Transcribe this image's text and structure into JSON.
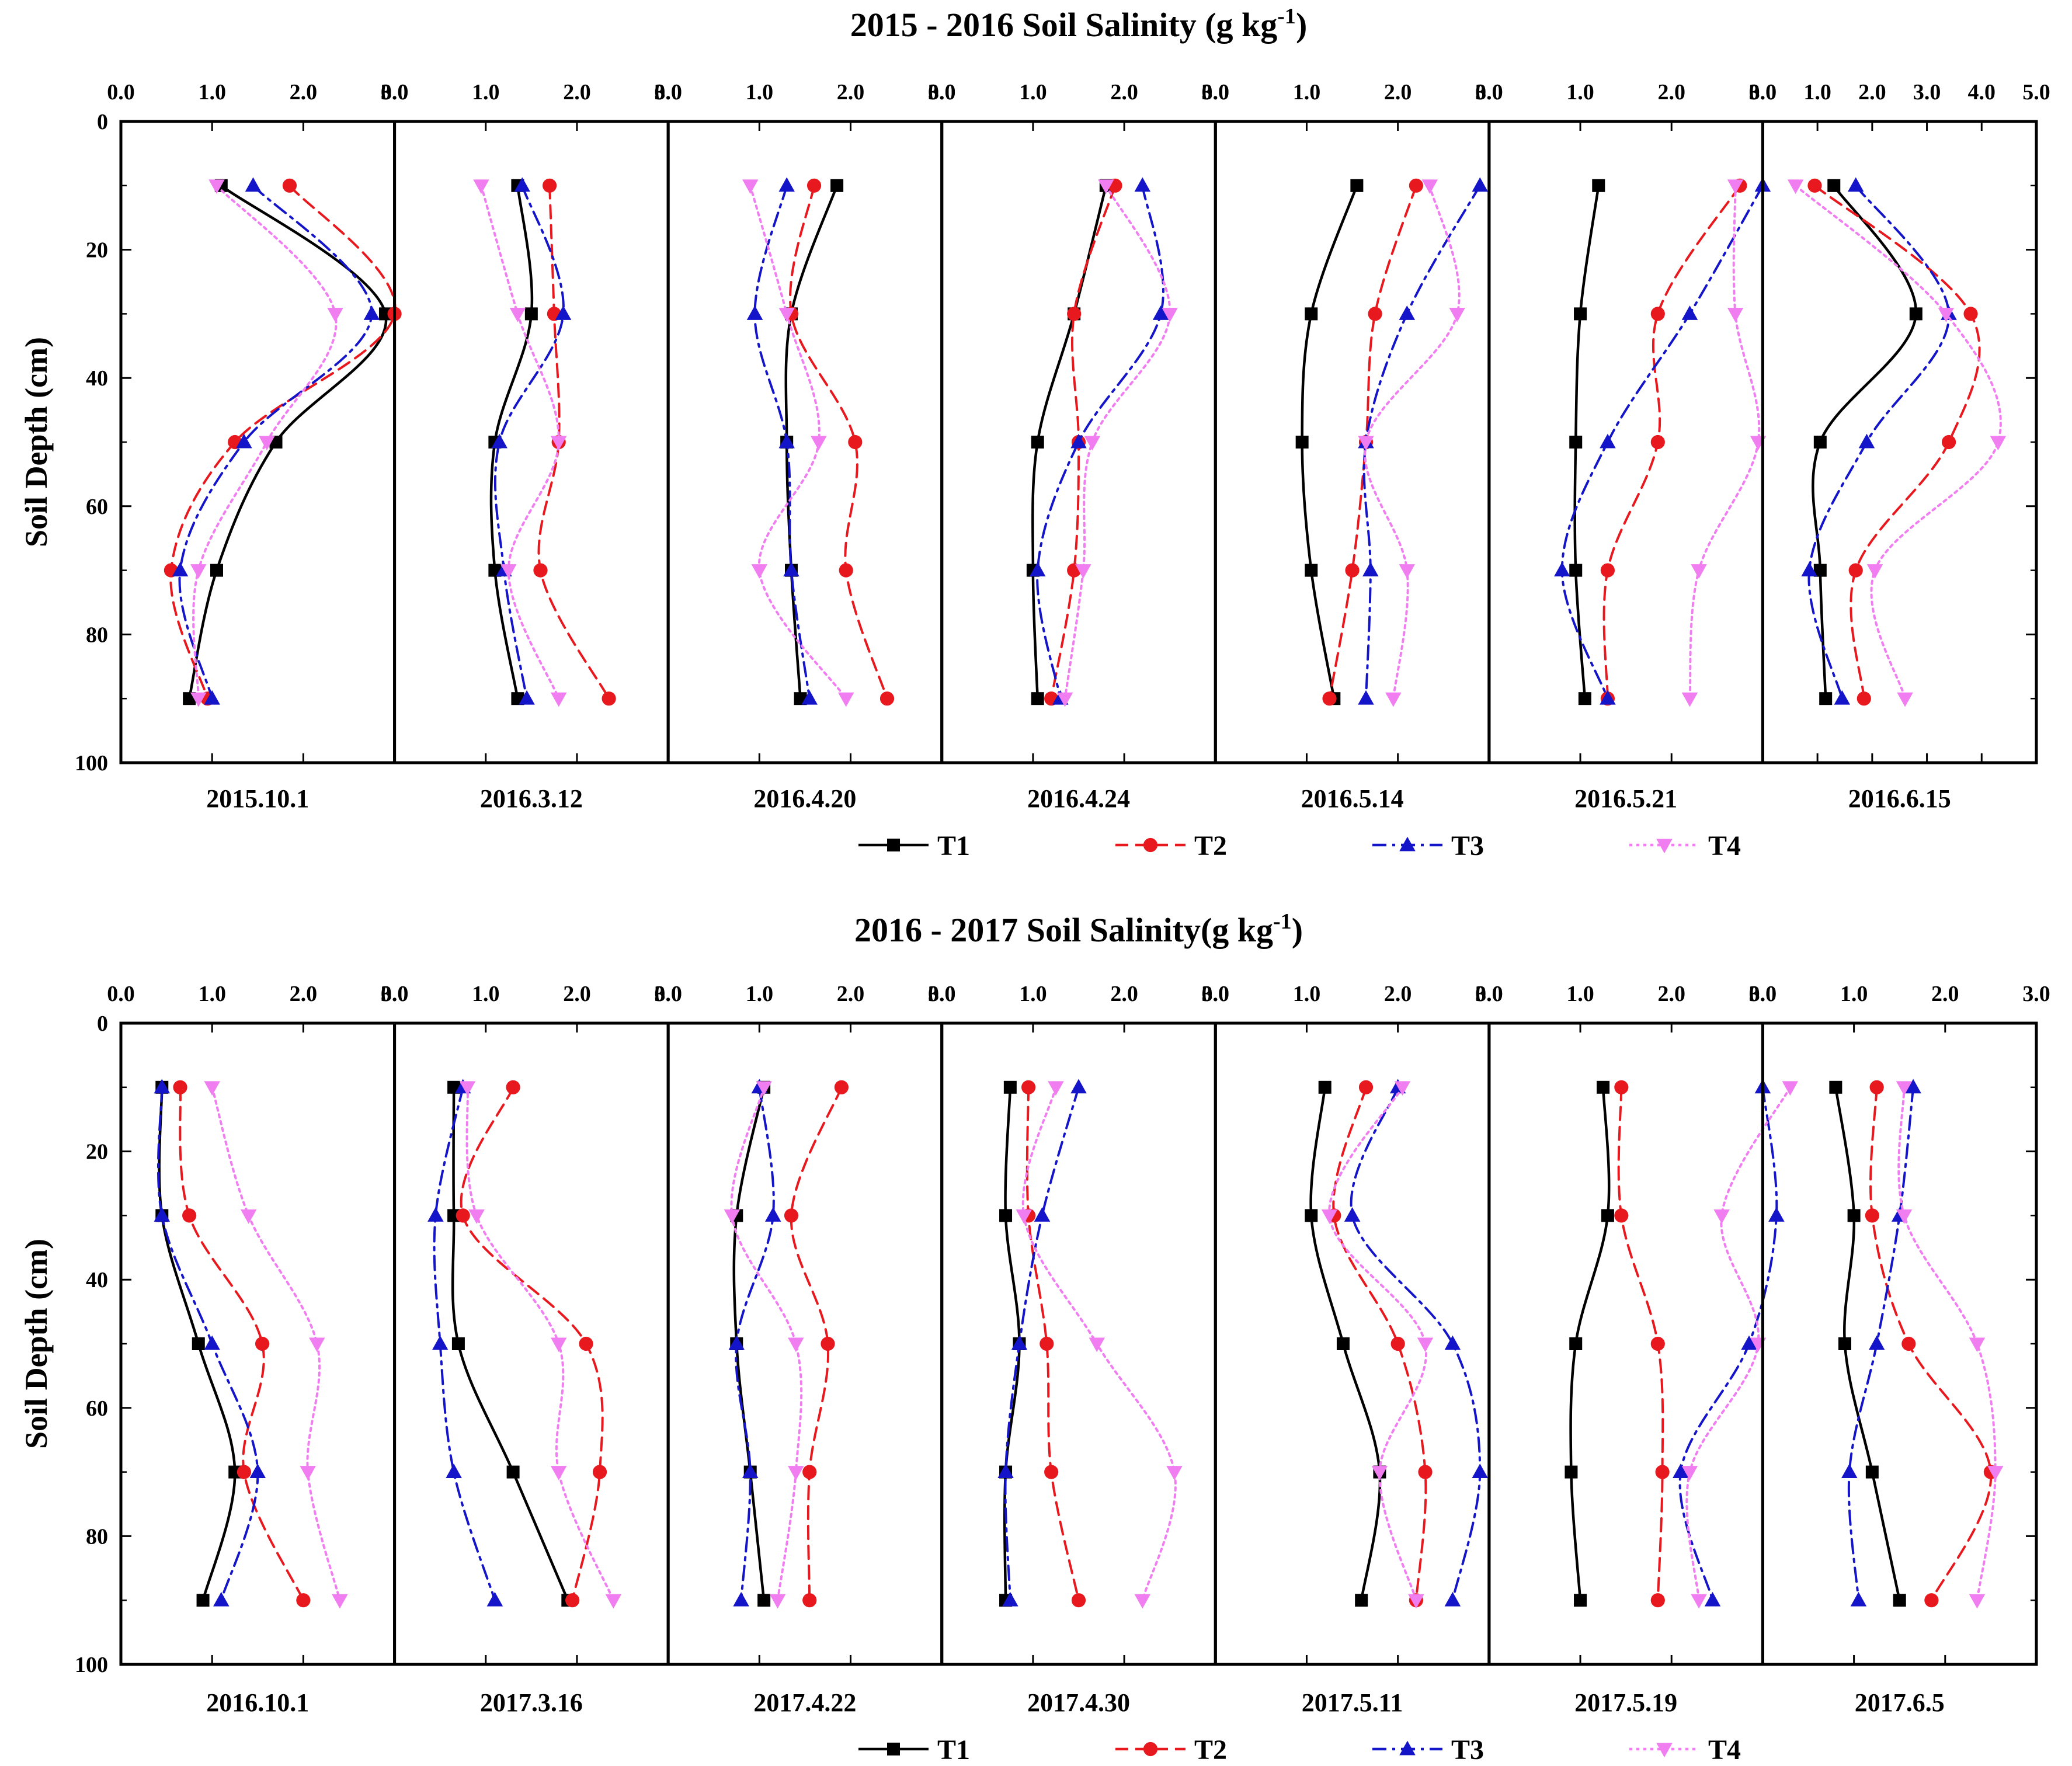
{
  "colors": {
    "T1": "#000000",
    "T2": "#e8191e",
    "T3": "#1414c8",
    "T4": "#f07ef0"
  },
  "chart_data": [
    {
      "type": "line",
      "title": "2015 - 2016 Soil Salinity (g kg",
      "title_sup": "-1",
      "title_end": ")",
      "ylabel": "Soil Depth (cm)",
      "ylim": [
        0,
        100
      ],
      "yticks": [
        "0",
        "20",
        "40",
        "60",
        "80",
        "100"
      ],
      "depths": [
        10,
        30,
        50,
        70,
        90
      ],
      "panels": [
        {
          "date": "2015.10.1",
          "xlim": [
            0,
            3
          ],
          "xticks": [
            "0.0",
            "1.0",
            "2.0",
            "3.0"
          ],
          "series": [
            {
              "name": "T1",
              "values": [
                1.1,
                2.9,
                1.7,
                1.05,
                0.75
              ]
            },
            {
              "name": "T2",
              "values": [
                1.85,
                3.0,
                1.25,
                0.55,
                0.95
              ]
            },
            {
              "name": "T3",
              "values": [
                1.45,
                2.75,
                1.35,
                0.65,
                1.0
              ]
            },
            {
              "name": "T4",
              "values": [
                1.05,
                2.35,
                1.6,
                0.85,
                0.85
              ]
            }
          ]
        },
        {
          "date": "2016.3.12",
          "xlim": [
            0,
            3
          ],
          "xticks": [
            "0.0",
            "1.0",
            "2.0",
            "3.0"
          ],
          "series": [
            {
              "name": "T1",
              "values": [
                1.35,
                1.5,
                1.1,
                1.1,
                1.35
              ]
            },
            {
              "name": "T2",
              "values": [
                1.7,
                1.75,
                1.8,
                1.6,
                2.35
              ]
            },
            {
              "name": "T3",
              "values": [
                1.4,
                1.85,
                1.15,
                1.2,
                1.45
              ]
            },
            {
              "name": "T4",
              "values": [
                0.95,
                1.35,
                1.8,
                1.25,
                1.8
              ]
            }
          ]
        },
        {
          "date": "2016.4.20",
          "xlim": [
            0,
            3
          ],
          "xticks": [
            "0.0",
            "1.0",
            "2.0",
            "3.0"
          ],
          "series": [
            {
              "name": "T1",
              "values": [
                1.85,
                1.35,
                1.3,
                1.35,
                1.45
              ]
            },
            {
              "name": "T2",
              "values": [
                1.6,
                1.35,
                2.05,
                1.95,
                2.4
              ]
            },
            {
              "name": "T3",
              "values": [
                1.3,
                0.95,
                1.3,
                1.35,
                1.55
              ]
            },
            {
              "name": "T4",
              "values": [
                0.9,
                1.3,
                1.65,
                1.0,
                1.95
              ]
            }
          ]
        },
        {
          "date": "2016.4.24",
          "xlim": [
            0,
            3
          ],
          "xticks": [
            "0.0",
            "1.0",
            "2.0",
            "3.0"
          ],
          "series": [
            {
              "name": "T1",
              "values": [
                1.8,
                1.45,
                1.05,
                1.0,
                1.05
              ]
            },
            {
              "name": "T2",
              "values": [
                1.9,
                1.45,
                1.5,
                1.45,
                1.2
              ]
            },
            {
              "name": "T3",
              "values": [
                2.2,
                2.4,
                1.5,
                1.05,
                1.3
              ]
            },
            {
              "name": "T4",
              "values": [
                1.8,
                2.5,
                1.65,
                1.55,
                1.35
              ]
            }
          ]
        },
        {
          "date": "2016.5.14",
          "xlim": [
            0,
            3
          ],
          "xticks": [
            "0.0",
            "1.0",
            "2.0",
            "3.0"
          ],
          "series": [
            {
              "name": "T1",
              "values": [
                1.55,
                1.05,
                0.95,
                1.05,
                1.3
              ]
            },
            {
              "name": "T2",
              "values": [
                2.2,
                1.75,
                1.65,
                1.5,
                1.25
              ]
            },
            {
              "name": "T3",
              "values": [
                2.9,
                2.1,
                1.65,
                1.7,
                1.65
              ]
            },
            {
              "name": "T4",
              "values": [
                2.35,
                2.65,
                1.65,
                2.1,
                1.95
              ]
            }
          ]
        },
        {
          "date": "2016.5.21",
          "xlim": [
            0,
            3
          ],
          "xticks": [
            "0.0",
            "1.0",
            "2.0",
            "3.0"
          ],
          "series": [
            {
              "name": "T1",
              "values": [
                1.2,
                1.0,
                0.95,
                0.95,
                1.05
              ]
            },
            {
              "name": "T2",
              "values": [
                2.75,
                1.85,
                1.85,
                1.3,
                1.3
              ]
            },
            {
              "name": "T3",
              "values": [
                3.0,
                2.2,
                1.3,
                0.8,
                1.3
              ]
            },
            {
              "name": "T4",
              "values": [
                2.7,
                2.7,
                2.95,
                2.3,
                2.2
              ]
            }
          ]
        },
        {
          "date": "2016.6.15",
          "xlim": [
            0,
            5
          ],
          "xticks": [
            "0.0",
            "1.0",
            "2.0",
            "3.0",
            "4.0",
            "5.0"
          ],
          "series": [
            {
              "name": "T1",
              "values": [
                1.3,
                2.8,
                1.05,
                1.05,
                1.15
              ]
            },
            {
              "name": "T2",
              "values": [
                0.95,
                3.8,
                3.4,
                1.7,
                1.85
              ]
            },
            {
              "name": "T3",
              "values": [
                1.7,
                3.4,
                1.9,
                0.85,
                1.45
              ]
            },
            {
              "name": "T4",
              "values": [
                0.6,
                3.35,
                4.3,
                2.05,
                2.6
              ]
            }
          ]
        }
      ],
      "legend": [
        "T1",
        "T2",
        "T3",
        "T4"
      ]
    },
    {
      "type": "line",
      "title": "2016 - 2017 Soil Salinity(g kg",
      "title_sup": "-1",
      "title_end": ")",
      "ylabel": "Soil Depth (cm)",
      "ylim": [
        0,
        100
      ],
      "yticks": [
        "0",
        "20",
        "40",
        "60",
        "80",
        "100"
      ],
      "depths": [
        10,
        30,
        50,
        70,
        90
      ],
      "panels": [
        {
          "date": "2016.10.1",
          "xlim": [
            0,
            3
          ],
          "xticks": [
            "0.0",
            "1.0",
            "2.0",
            "3.0"
          ],
          "series": [
            {
              "name": "T1",
              "values": [
                0.45,
                0.45,
                0.85,
                1.25,
                0.9
              ]
            },
            {
              "name": "T2",
              "values": [
                0.65,
                0.75,
                1.55,
                1.35,
                2.0
              ]
            },
            {
              "name": "T3",
              "values": [
                0.45,
                0.45,
                1.0,
                1.5,
                1.1
              ]
            },
            {
              "name": "T4",
              "values": [
                1.0,
                1.4,
                2.15,
                2.05,
                2.4
              ]
            }
          ]
        },
        {
          "date": "2017.3.16",
          "xlim": [
            0,
            3
          ],
          "xticks": [
            "0.0",
            "1.0",
            "2.0",
            "3.0"
          ],
          "series": [
            {
              "name": "T1",
              "values": [
                0.65,
                0.65,
                0.7,
                1.3,
                1.9
              ]
            },
            {
              "name": "T2",
              "values": [
                1.3,
                0.75,
                2.1,
                2.25,
                1.95
              ]
            },
            {
              "name": "T3",
              "values": [
                0.75,
                0.45,
                0.5,
                0.65,
                1.1
              ]
            },
            {
              "name": "T4",
              "values": [
                0.8,
                0.9,
                1.8,
                1.8,
                2.4
              ]
            }
          ]
        },
        {
          "date": "2017.4.22",
          "xlim": [
            0,
            3
          ],
          "xticks": [
            "0.0",
            "1.0",
            "2.0",
            "3.0"
          ],
          "series": [
            {
              "name": "T1",
              "values": [
                1.05,
                0.75,
                0.75,
                0.9,
                1.05
              ]
            },
            {
              "name": "T2",
              "values": [
                1.9,
                1.35,
                1.75,
                1.55,
                1.55
              ]
            },
            {
              "name": "T3",
              "values": [
                1.0,
                1.15,
                0.75,
                0.9,
                0.8
              ]
            },
            {
              "name": "T4",
              "values": [
                1.05,
                0.7,
                1.4,
                1.4,
                1.2
              ]
            }
          ]
        },
        {
          "date": "2017.4.30",
          "xlim": [
            0,
            3
          ],
          "xticks": [
            "0.0",
            "1.0",
            "2.0",
            "3.0"
          ],
          "series": [
            {
              "name": "T1",
              "values": [
                0.75,
                0.7,
                0.85,
                0.7,
                0.7
              ]
            },
            {
              "name": "T2",
              "values": [
                0.95,
                0.95,
                1.15,
                1.2,
                1.5
              ]
            },
            {
              "name": "T3",
              "values": [
                1.5,
                1.1,
                0.85,
                0.7,
                0.75
              ]
            },
            {
              "name": "T4",
              "values": [
                1.25,
                0.9,
                1.7,
                2.55,
                2.2
              ]
            }
          ]
        },
        {
          "date": "2017.5.11",
          "xlim": [
            0,
            3
          ],
          "xticks": [
            "0.0",
            "1.0",
            "2.0",
            "3.0"
          ],
          "series": [
            {
              "name": "T1",
              "values": [
                1.2,
                1.05,
                1.4,
                1.8,
                1.6
              ]
            },
            {
              "name": "T2",
              "values": [
                1.65,
                1.3,
                2.0,
                2.3,
                2.2
              ]
            },
            {
              "name": "T3",
              "values": [
                2.0,
                1.5,
                2.6,
                2.9,
                2.6
              ]
            },
            {
              "name": "T4",
              "values": [
                2.05,
                1.25,
                2.3,
                1.8,
                2.2
              ]
            }
          ]
        },
        {
          "date": "2017.5.19",
          "xlim": [
            0,
            3
          ],
          "xticks": [
            "0.0",
            "1.0",
            "2.0",
            "3.0"
          ],
          "series": [
            {
              "name": "T1",
              "values": [
                1.25,
                1.3,
                0.95,
                0.9,
                1.0
              ]
            },
            {
              "name": "T2",
              "values": [
                1.45,
                1.45,
                1.85,
                1.9,
                1.85
              ]
            },
            {
              "name": "T3",
              "values": [
                3.0,
                3.15,
                2.85,
                2.1,
                2.45
              ]
            },
            {
              "name": "T4",
              "values": [
                3.3,
                2.55,
                2.95,
                2.2,
                2.3
              ]
            }
          ]
        },
        {
          "date": "2017.6.5",
          "xlim": [
            0,
            3
          ],
          "xticks": [
            "0.0",
            "1.0",
            "2.0",
            "3.0"
          ],
          "series": [
            {
              "name": "T1",
              "values": [
                0.8,
                1.0,
                0.9,
                1.2,
                1.5
              ]
            },
            {
              "name": "T2",
              "values": [
                1.25,
                1.2,
                1.6,
                2.5,
                1.85
              ]
            },
            {
              "name": "T3",
              "values": [
                1.65,
                1.5,
                1.25,
                0.95,
                1.05
              ]
            },
            {
              "name": "T4",
              "values": [
                1.55,
                1.55,
                2.35,
                2.55,
                2.35
              ]
            }
          ]
        }
      ],
      "legend": [
        "T1",
        "T2",
        "T3",
        "T4"
      ]
    }
  ]
}
